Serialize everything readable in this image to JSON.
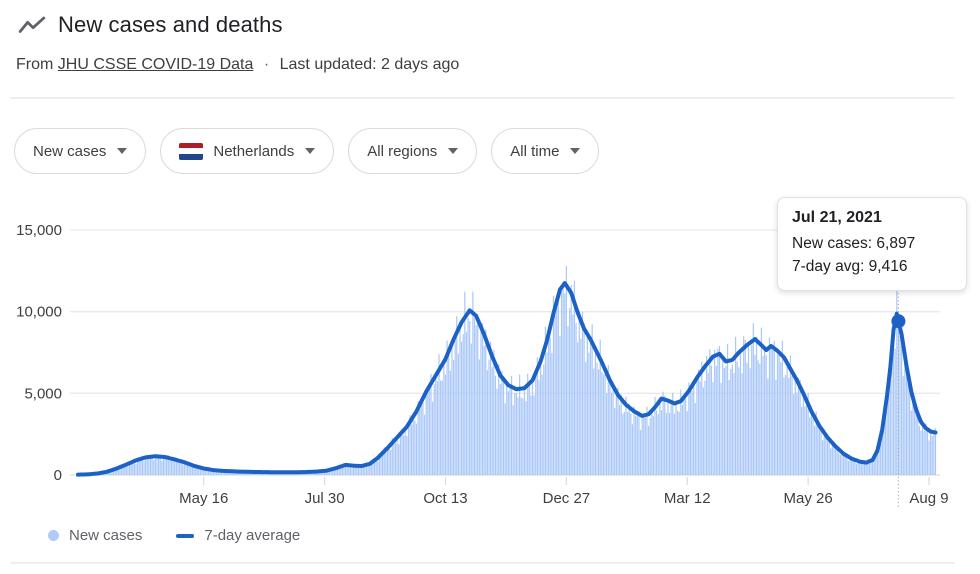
{
  "header": {
    "title": "New cases and deaths",
    "source_prefix": "From",
    "source_link": "JHU CSSE COVID-19 Data",
    "separator": "·",
    "updated": "Last updated: 2 days ago"
  },
  "filters": [
    {
      "label": "New cases",
      "has_flag": false
    },
    {
      "label": "Netherlands",
      "has_flag": true
    },
    {
      "label": "All regions",
      "has_flag": false
    },
    {
      "label": "All time",
      "has_flag": false
    }
  ],
  "flag_colors": {
    "top": "#ae1c28",
    "middle": "#ffffff",
    "bottom": "#21468b"
  },
  "tooltip": {
    "date": "Jul 21, 2021",
    "line1": "New cases: 6,897",
    "line2": "7-day avg: 9,416"
  },
  "legend": {
    "items": [
      {
        "label": "New cases",
        "swatch": "dot"
      },
      {
        "label": "7-day average",
        "swatch": "line"
      }
    ]
  },
  "colors": {
    "new_cases_fill": "#a9c7f8",
    "avg_line": "#1c62c6",
    "gridline": "#e9eaee",
    "zero_line": "#dadce0",
    "axis_text": "#3c4043",
    "crosshair": "#9aa0a6"
  },
  "chart_data": {
    "type": "area",
    "title": "New cases and deaths — Netherlands — All time",
    "legend_position": "bottom",
    "grid": true,
    "ylim": [
      0,
      15700
    ],
    "yticks": [
      {
        "value": 0,
        "label": "0"
      },
      {
        "value": 5000,
        "label": "5,000"
      },
      {
        "value": 10000,
        "label": "10,000"
      },
      {
        "value": 15000,
        "label": "15,000"
      }
    ],
    "xticks": [
      {
        "day": 78,
        "label": "May 16"
      },
      {
        "day": 153,
        "label": "Jul 30"
      },
      {
        "day": 228,
        "label": "Oct 13"
      },
      {
        "day": 303,
        "label": "Dec 27"
      },
      {
        "day": 378,
        "label": "Mar 12"
      },
      {
        "day": 453,
        "label": "May 26"
      },
      {
        "day": 528,
        "label": "Aug 9"
      }
    ],
    "total_days": 532,
    "highlight": {
      "day": 509,
      "date": "Jul 21, 2021",
      "new_cases": 6897,
      "avg": 9416
    },
    "series": [
      {
        "name": "New cases",
        "style": "bars",
        "derived": "daily values scatter around 7-day average"
      },
      {
        "name": "7-day average",
        "style": "line",
        "points": [
          [
            0,
            20
          ],
          [
            6,
            40
          ],
          [
            12,
            90
          ],
          [
            18,
            200
          ],
          [
            24,
            400
          ],
          [
            30,
            640
          ],
          [
            36,
            900
          ],
          [
            42,
            1080
          ],
          [
            48,
            1150
          ],
          [
            54,
            1100
          ],
          [
            60,
            950
          ],
          [
            66,
            780
          ],
          [
            72,
            560
          ],
          [
            78,
            400
          ],
          [
            84,
            300
          ],
          [
            90,
            250
          ],
          [
            100,
            210
          ],
          [
            110,
            185
          ],
          [
            120,
            170
          ],
          [
            130,
            165
          ],
          [
            140,
            175
          ],
          [
            148,
            210
          ],
          [
            154,
            260
          ],
          [
            160,
            420
          ],
          [
            166,
            620
          ],
          [
            171,
            570
          ],
          [
            176,
            550
          ],
          [
            181,
            680
          ],
          [
            186,
            1050
          ],
          [
            192,
            1650
          ],
          [
            198,
            2300
          ],
          [
            204,
            2950
          ],
          [
            210,
            3900
          ],
          [
            216,
            5100
          ],
          [
            222,
            6100
          ],
          [
            228,
            7100
          ],
          [
            233,
            8300
          ],
          [
            238,
            9350
          ],
          [
            243,
            10080
          ],
          [
            247,
            9750
          ],
          [
            252,
            8600
          ],
          [
            257,
            7250
          ],
          [
            262,
            6100
          ],
          [
            267,
            5500
          ],
          [
            272,
            5250
          ],
          [
            277,
            5320
          ],
          [
            282,
            5800
          ],
          [
            287,
            6950
          ],
          [
            291,
            8250
          ],
          [
            295,
            9900
          ],
          [
            299,
            11350
          ],
          [
            302,
            11750
          ],
          [
            306,
            11150
          ],
          [
            310,
            9950
          ],
          [
            314,
            8950
          ],
          [
            318,
            8300
          ],
          [
            321,
            7700
          ],
          [
            325,
            6900
          ],
          [
            330,
            5800
          ],
          [
            335,
            4900
          ],
          [
            340,
            4300
          ],
          [
            345,
            3900
          ],
          [
            350,
            3620
          ],
          [
            354,
            3720
          ],
          [
            358,
            4150
          ],
          [
            362,
            4680
          ],
          [
            366,
            4560
          ],
          [
            370,
            4380
          ],
          [
            374,
            4520
          ],
          [
            379,
            5150
          ],
          [
            384,
            5950
          ],
          [
            389,
            6650
          ],
          [
            394,
            7250
          ],
          [
            398,
            7420
          ],
          [
            402,
            6950
          ],
          [
            406,
            7050
          ],
          [
            410,
            7500
          ],
          [
            415,
            7950
          ],
          [
            420,
            8320
          ],
          [
            424,
            7950
          ],
          [
            427,
            7650
          ],
          [
            430,
            7900
          ],
          [
            434,
            7600
          ],
          [
            438,
            7200
          ],
          [
            442,
            6500
          ],
          [
            446,
            5800
          ],
          [
            450,
            5000
          ],
          [
            455,
            3900
          ],
          [
            460,
            3000
          ],
          [
            465,
            2300
          ],
          [
            470,
            1750
          ],
          [
            475,
            1300
          ],
          [
            480,
            1000
          ],
          [
            485,
            820
          ],
          [
            489,
            760
          ],
          [
            493,
            920
          ],
          [
            496,
            1500
          ],
          [
            499,
            2800
          ],
          [
            502,
            4900
          ],
          [
            504,
            6600
          ],
          [
            506,
            8900
          ],
          [
            508,
            9880
          ],
          [
            509,
            9416
          ],
          [
            511,
            8600
          ],
          [
            514,
            6700
          ],
          [
            517,
            5100
          ],
          [
            520,
            4000
          ],
          [
            523,
            3250
          ],
          [
            526,
            2870
          ],
          [
            529,
            2660
          ],
          [
            532,
            2600
          ]
        ]
      }
    ]
  }
}
